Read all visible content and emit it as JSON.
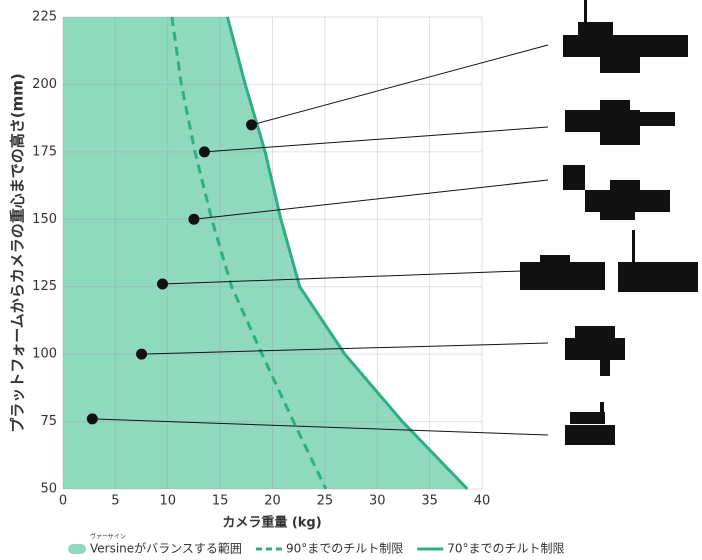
{
  "chart_data": {
    "type": "line",
    "x_label": "カメラ重量 (kg)",
    "y_label": "プラットフォームからカメラの重心までの高さ(mm)",
    "annotation": "ヴァーサイン",
    "xlim": [
      0,
      40
    ],
    "xticks": [
      0,
      5,
      10,
      15,
      20,
      25,
      30,
      35,
      40
    ],
    "ylim": [
      50,
      225
    ],
    "yticks": [
      50,
      75,
      100,
      125,
      150,
      175,
      200,
      225
    ],
    "grid": true,
    "series": [
      {
        "name": "Versineがバランスする範囲",
        "color": "#8fd9bf",
        "style": "area",
        "x": [
          15.7,
          17.4,
          19.3,
          20.8,
          22.6,
          26.9,
          32.4,
          38.6
        ],
        "values": [
          225,
          200,
          175,
          150,
          125,
          100,
          75,
          50
        ]
      },
      {
        "name": "90°までのチルト制限",
        "color": "#2fae80",
        "style": "dashed",
        "x": [
          10.4,
          11.3,
          12.6,
          14.2,
          16.1,
          19,
          22,
          25.1
        ],
        "values": [
          225,
          200,
          175,
          150,
          125,
          100,
          75,
          50
        ]
      },
      {
        "name": "70°までのチルト制限",
        "color": "#2fae80",
        "style": "solid",
        "x": [
          15.7,
          17.4,
          19.3,
          20.8,
          22.6,
          26.9,
          32.4,
          38.6
        ],
        "values": [
          225,
          200,
          175,
          150,
          125,
          100,
          75,
          50
        ]
      },
      {
        "color": "#111111",
        "style": "points",
        "x": [
          18,
          13.5,
          12.5,
          9.5,
          7.5,
          2.8
        ],
        "values": [
          185,
          175,
          150,
          126,
          100,
          76
        ]
      }
    ]
  }
}
